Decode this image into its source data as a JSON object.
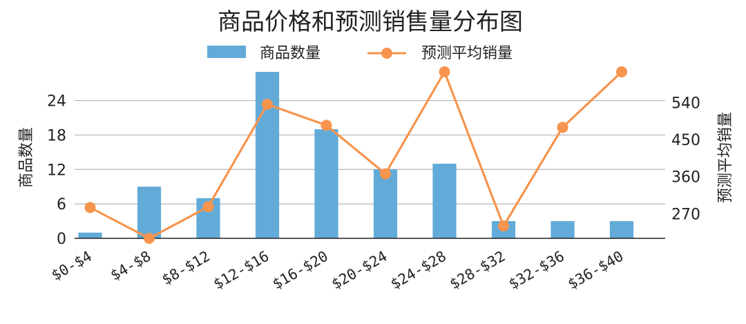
{
  "chart_data": {
    "type": "bar+line",
    "title": "商品价格和预测销售量分布图",
    "categories": [
      "$0-$4",
      "$4-$8",
      "$8-$12",
      "$12-$16",
      "$16-$20",
      "$20-$24",
      "$24-$28",
      "$28-$32",
      "$32-$36",
      "$36-$40"
    ],
    "series": [
      {
        "name": "商品数量",
        "type": "bar",
        "axis": "left",
        "color": "#62abd8",
        "values": [
          1,
          9,
          7,
          29,
          19,
          12,
          13,
          3,
          3,
          3
        ]
      },
      {
        "name": "预测平均销量",
        "type": "line",
        "axis": "right",
        "color": "#f7944d",
        "values": [
          285,
          210,
          287,
          536,
          485,
          367,
          615,
          240,
          480,
          615
        ]
      }
    ],
    "y_left": {
      "label": "商品数量",
      "ticks": [
        0,
        6,
        12,
        18,
        24
      ],
      "range": [
        0,
        29
      ]
    },
    "y_right": {
      "label": "预测平均销量",
      "ticks": [
        270,
        360,
        450,
        540
      ],
      "range": [
        210,
        615
      ]
    },
    "grid": true,
    "legend_position": "top-center"
  }
}
